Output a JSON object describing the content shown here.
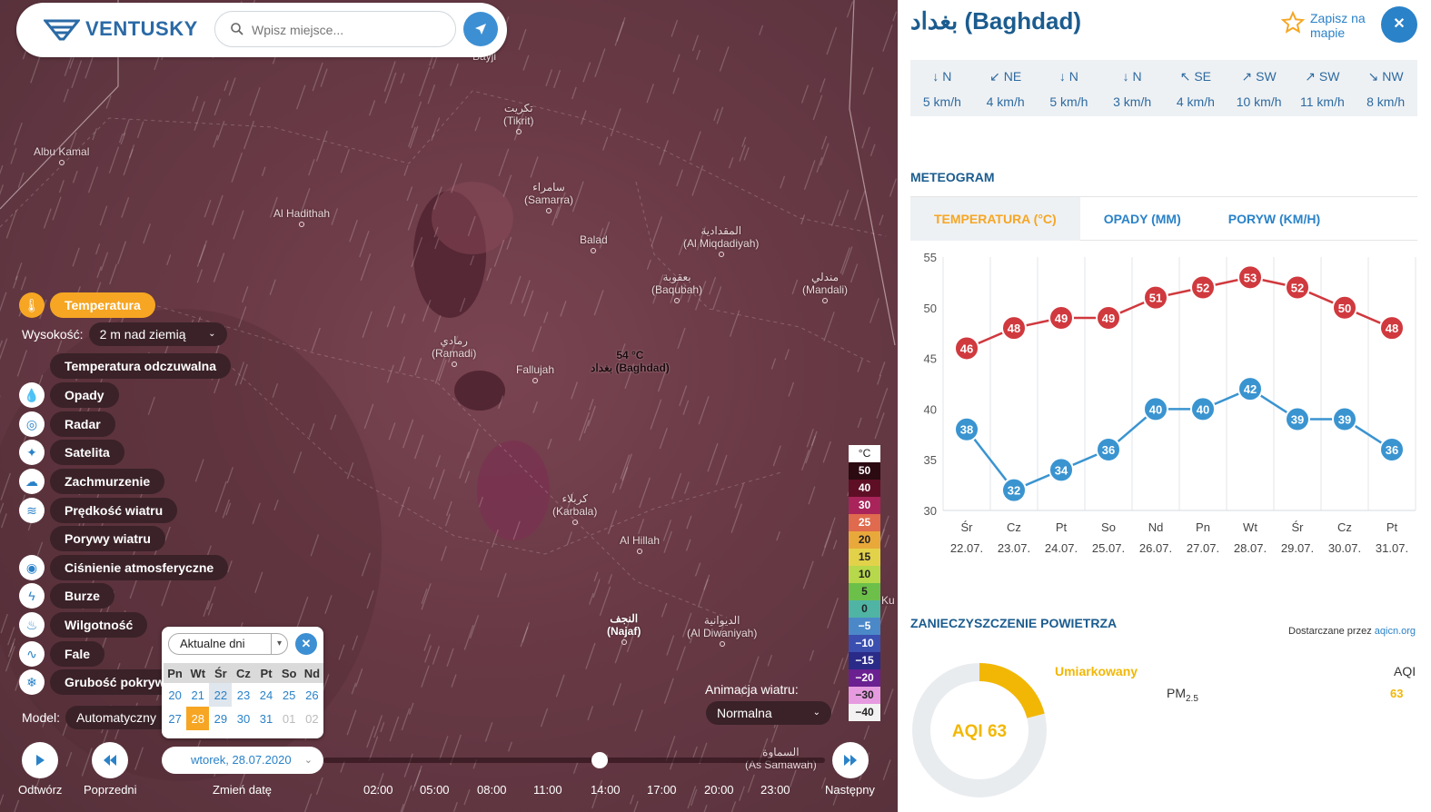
{
  "search": {
    "placeholder": "Wpisz miejsce..."
  },
  "brand": {
    "name": "VENTUSKY"
  },
  "cities": [
    {
      "id": "bayji",
      "name": "Bayji"
    },
    {
      "id": "tikrit",
      "name": "تكريت\n(Tikrit)"
    },
    {
      "id": "albukamal",
      "name": "Albu Kamal"
    },
    {
      "id": "samarra",
      "name": "سامراء\n(Samarra)"
    },
    {
      "id": "alhadithah",
      "name": "Al Hadithah"
    },
    {
      "id": "balad",
      "name": "Balad"
    },
    {
      "id": "almiqdadiyah",
      "name": "المقدادية\n(Al Miqdadiyah)"
    },
    {
      "id": "baqubah",
      "name": "بعقوبة\n(Baqubah)"
    },
    {
      "id": "mandali",
      "name": "مندلي\n(Mandali)"
    },
    {
      "id": "ramadi",
      "name": "رمادي\n(Ramadi)"
    },
    {
      "id": "fallujah",
      "name": "Fallujah"
    },
    {
      "id": "karbala",
      "name": "كربلاء\n(Karbala)"
    },
    {
      "id": "alhillah",
      "name": "Al Hillah"
    },
    {
      "id": "najaf",
      "name": "النجف\n(Najaf)"
    },
    {
      "id": "aldiwaniyah",
      "name": "الديوانية\n(Al Diwaniyah)"
    },
    {
      "id": "assamawah",
      "name": "السماوة\n(As Samawah)"
    },
    {
      "id": "ku",
      "name": "Ku"
    }
  ],
  "baghdad_label": {
    "temp": "54 °C",
    "name": "بغداد (Baghdad)"
  },
  "layers": {
    "active": "Temperatura",
    "height_label": "Wysokość:",
    "height_value": "2 m nad ziemią",
    "items": [
      {
        "label": "Temperatura odczuwalna",
        "icon": "none"
      },
      {
        "label": "Opady",
        "icon": "drop-icon"
      },
      {
        "label": "Radar",
        "icon": "radar-icon"
      },
      {
        "label": "Satelita",
        "icon": "satellite-icon"
      },
      {
        "label": "Zachmurzenie",
        "icon": "cloud-icon"
      },
      {
        "label": "Prędkość wiatru",
        "icon": "wind-icon"
      },
      {
        "label": "Porywy wiatru",
        "icon": "none"
      },
      {
        "label": "Ciśnienie atmosferyczne",
        "icon": "pressure-icon"
      },
      {
        "label": "Burze",
        "icon": "lightning-icon"
      },
      {
        "label": "Wilgotność",
        "icon": "humidity-icon"
      },
      {
        "label": "Fale",
        "icon": "wave-icon"
      },
      {
        "label": "Grubość pokrywy",
        "icon": "snowflake-icon"
      }
    ],
    "model_label": "Model:",
    "model_value": "Automatyczny"
  },
  "calendar": {
    "dropdown": "Aktualne dni",
    "headers": [
      "Pn",
      "Wt",
      "Śr",
      "Cz",
      "Pt",
      "So",
      "Nd"
    ],
    "week1": [
      "20",
      "21",
      "22",
      "23",
      "24",
      "25",
      "26"
    ],
    "week2": [
      "27",
      "28",
      "29",
      "30",
      "31",
      "01",
      "02"
    ]
  },
  "controls": {
    "play": "Odtwórz",
    "prev": "Poprzedni",
    "change_date": "Zmień datę",
    "next": "Następny",
    "date": "wtorek, 28.07.2020",
    "times": [
      "02:00",
      "05:00",
      "08:00",
      "11:00",
      "14:00",
      "17:00",
      "20:00",
      "23:00"
    ],
    "timeline_position": 0.55
  },
  "animation": {
    "label": "Animacja wiatru:",
    "value": "Normalna"
  },
  "legend": {
    "unit": "°C",
    "items": [
      {
        "v": "50",
        "c": "#2b0a12",
        "t": "#fff"
      },
      {
        "v": "40",
        "c": "#5e0f26",
        "t": "#fff"
      },
      {
        "v": "30",
        "c": "#a8245a",
        "t": "#fff"
      },
      {
        "v": "25",
        "c": "#e06a4e",
        "t": "#fff"
      },
      {
        "v": "20",
        "c": "#e9a83a",
        "t": "#222"
      },
      {
        "v": "15",
        "c": "#e2d24a",
        "t": "#222"
      },
      {
        "v": "10",
        "c": "#b7d84a",
        "t": "#222"
      },
      {
        "v": "5",
        "c": "#6cc04a",
        "t": "#222"
      },
      {
        "v": "0",
        "c": "#4fb4a4",
        "t": "#222"
      },
      {
        "v": "−5",
        "c": "#4b88c8",
        "t": "#fff"
      },
      {
        "v": "−10",
        "c": "#3a4fb0",
        "t": "#fff"
      },
      {
        "v": "−15",
        "c": "#2a2a88",
        "t": "#fff"
      },
      {
        "v": "−20",
        "c": "#6a2090",
        "t": "#fff"
      },
      {
        "v": "−30",
        "c": "#e69be0",
        "t": "#222"
      },
      {
        "v": "−40",
        "c": "#f2f2f2",
        "t": "#222"
      }
    ]
  },
  "panel": {
    "title": "بغداد (Baghdad)",
    "save_label": "Zapisz na mapie",
    "winds": [
      {
        "arrow": "↓",
        "dir": "N",
        "speed": "5 km/h"
      },
      {
        "arrow": "↙",
        "dir": "NE",
        "speed": "4 km/h"
      },
      {
        "arrow": "↓",
        "dir": "N",
        "speed": "5 km/h"
      },
      {
        "arrow": "↓",
        "dir": "N",
        "speed": "3 km/h"
      },
      {
        "arrow": "↖",
        "dir": "SE",
        "speed": "4 km/h"
      },
      {
        "arrow": "↗",
        "dir": "SW",
        "speed": "10 km/h"
      },
      {
        "arrow": "↗",
        "dir": "SW",
        "speed": "11 km/h"
      },
      {
        "arrow": "↘",
        "dir": "NW",
        "speed": "8 km/h"
      }
    ],
    "meteogram_title": "METEOGRAM",
    "tabs": [
      "TEMPERATURA (°C)",
      "OPADY (MM)",
      "PORYW (KM/H)"
    ],
    "air_title": "ZANIECZYSZCZENIE POWIETRZA",
    "air_source_prefix": "Dostarczane przez ",
    "air_source_link": "aqicn.org",
    "aqi_status": "Umiarkowany",
    "aqi_label": "AQI 63",
    "aqi_col": "AQI",
    "aqi_value": "63",
    "pm_label": "PM",
    "pm_sub": "2.5",
    "aqi_fraction": 0.21
  },
  "chart_data": {
    "type": "line",
    "categories": [
      "Śr",
      "Cz",
      "Pt",
      "So",
      "Nd",
      "Pn",
      "Wt",
      "Śr",
      "Cz",
      "Pt"
    ],
    "dates": [
      "22.07.",
      "23.07.",
      "24.07.",
      "25.07.",
      "26.07.",
      "27.07.",
      "28.07.",
      "29.07.",
      "30.07.",
      "31.07."
    ],
    "series": [
      {
        "values": [
          46,
          48,
          49,
          49,
          51,
          52,
          53,
          52,
          50,
          48
        ],
        "color": "#d0393e"
      },
      {
        "values": [
          38,
          32,
          34,
          36,
          40,
          40,
          42,
          39,
          39,
          36
        ],
        "color": "#3a94d0"
      }
    ],
    "yticks": [
      55,
      50,
      45,
      40,
      35,
      30
    ],
    "ylim": [
      30,
      55
    ],
    "grid": true
  }
}
